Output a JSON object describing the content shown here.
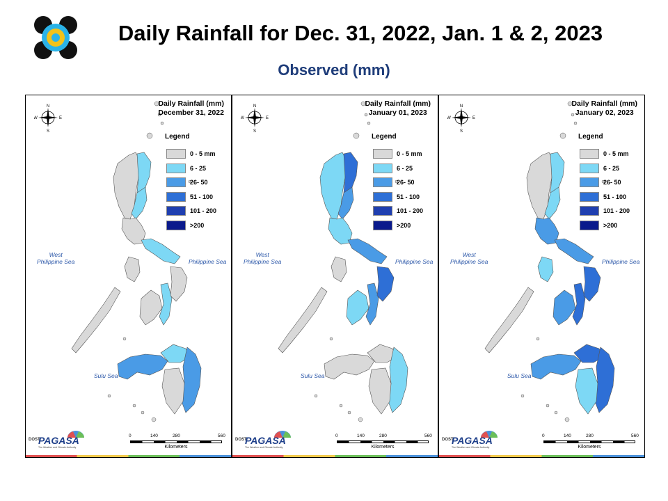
{
  "header": {
    "title": "Daily Rainfall for Dec. 31, 2022, Jan. 1 & 2, 2023",
    "subtitle": "Observed (mm)",
    "logo": "dost-agency-seal"
  },
  "legend": {
    "title": "Legend",
    "classes": [
      {
        "label": "0 - 5 mm",
        "color": "#d9d9d9"
      },
      {
        "label": "6 - 25",
        "color": "#7dd8f5"
      },
      {
        "label": "26- 50",
        "color": "#4a9be6"
      },
      {
        "label": "51 - 100",
        "color": "#2e6fd6"
      },
      {
        "label": "101 - 200",
        "color": "#1f3fb0"
      },
      {
        "label": ">200",
        "color": "#0a1a8c"
      }
    ]
  },
  "panels": [
    {
      "title_line1": "Daily Rainfall (mm)",
      "title_line2": "December 31, 2022",
      "regions": {
        "north_luzon": 0,
        "north_luzon_east": 1,
        "cagayan": 1,
        "central_luzon": 0,
        "bicol": 1,
        "mindoro": 0,
        "palawan": 0,
        "visayas_west": 0,
        "visayas_east": 1,
        "samar": 0,
        "mindanao_west": 2,
        "mindanao_north": 1,
        "mindanao_east": 2,
        "mindanao_south": 0
      }
    },
    {
      "title_line1": "Daily Rainfall (mm)",
      "title_line2": "January 01, 2023",
      "regions": {
        "north_luzon": 1,
        "north_luzon_east": 3,
        "cagayan": 2,
        "central_luzon": 1,
        "bicol": 2,
        "mindoro": 0,
        "palawan": 0,
        "visayas_west": 1,
        "visayas_east": 2,
        "samar": 3,
        "mindanao_west": 0,
        "mindanao_north": 0,
        "mindanao_east": 1,
        "mindanao_south": 0
      }
    },
    {
      "title_line1": "Daily Rainfall (mm)",
      "title_line2": "January 02, 2023",
      "regions": {
        "north_luzon": 0,
        "north_luzon_east": 1,
        "cagayan": 1,
        "central_luzon": 2,
        "bicol": 2,
        "mindoro": 1,
        "palawan": 0,
        "visayas_west": 2,
        "visayas_east": 3,
        "samar": 3,
        "mindanao_west": 2,
        "mindanao_north": 3,
        "mindanao_east": 3,
        "mindanao_south": 1
      }
    }
  ],
  "seas": {
    "west": "West\nPhilippine Sea",
    "east": "Philippine Sea",
    "south": "Sulu Sea"
  },
  "compass_letters": {
    "n": "N",
    "e": "E",
    "s": "S",
    "w": "W"
  },
  "scale": {
    "ticks": [
      "0",
      "140",
      "280",
      "560"
    ],
    "unit": "Kilometers"
  },
  "branding": {
    "dost": "DOST",
    "name": "PAGASA",
    "tagline": "The Weather and Climate Authority"
  }
}
